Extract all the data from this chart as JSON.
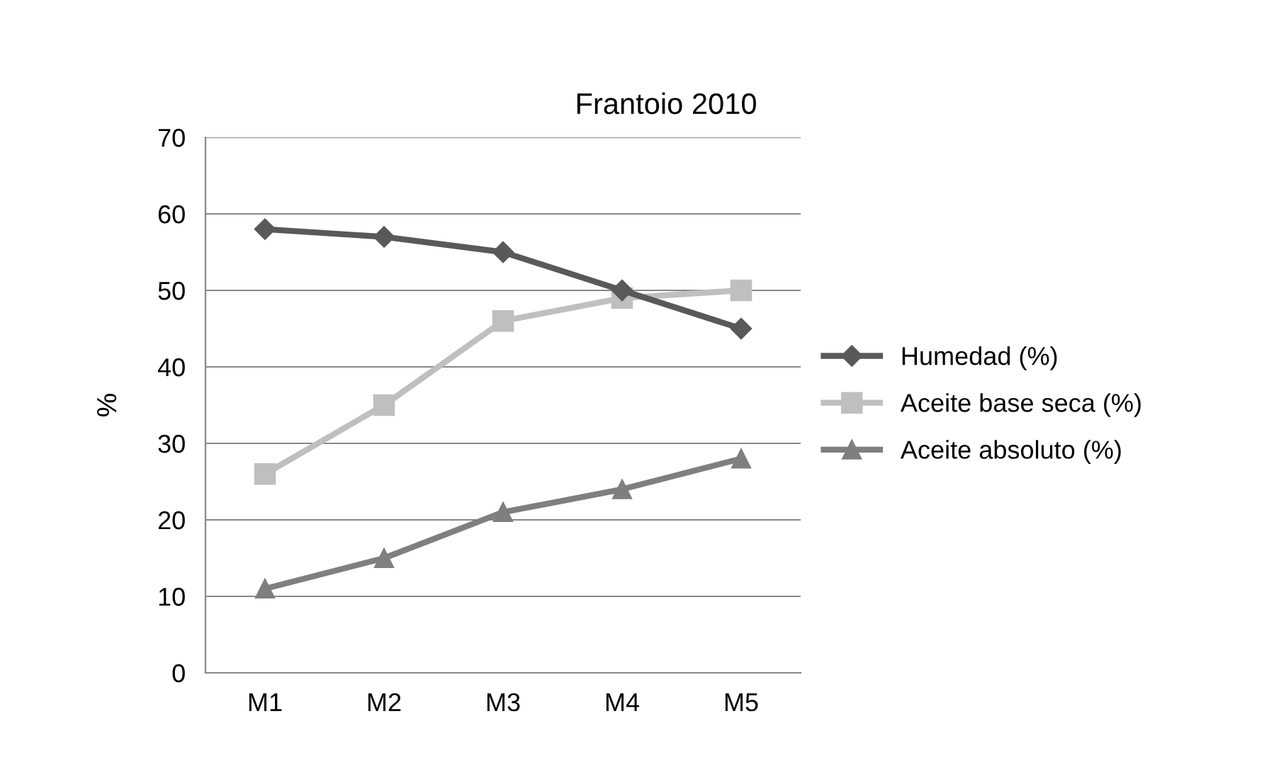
{
  "chart_data": {
    "type": "line",
    "title": "Frantoio 2010",
    "ylabel": "%",
    "categories": [
      "M1",
      "M2",
      "M3",
      "M4",
      "M5"
    ],
    "series": [
      {
        "name": "Humedad (%)",
        "color": "#595959",
        "marker": "diamond",
        "values": [
          58,
          57,
          55,
          50,
          45
        ]
      },
      {
        "name": "Aceite base seca (%)",
        "color": "#bfbfbf",
        "marker": "square",
        "values": [
          26,
          35,
          46,
          49,
          50
        ]
      },
      {
        "name": "Aceite absoluto (%)",
        "color": "#7f7f7f",
        "marker": "triangle",
        "values": [
          11,
          15,
          21,
          24,
          28
        ]
      }
    ],
    "ylim": [
      0,
      70
    ],
    "yticks": [
      0,
      10,
      20,
      30,
      40,
      50,
      60,
      70
    ],
    "grid": "y",
    "legend": "right"
  }
}
